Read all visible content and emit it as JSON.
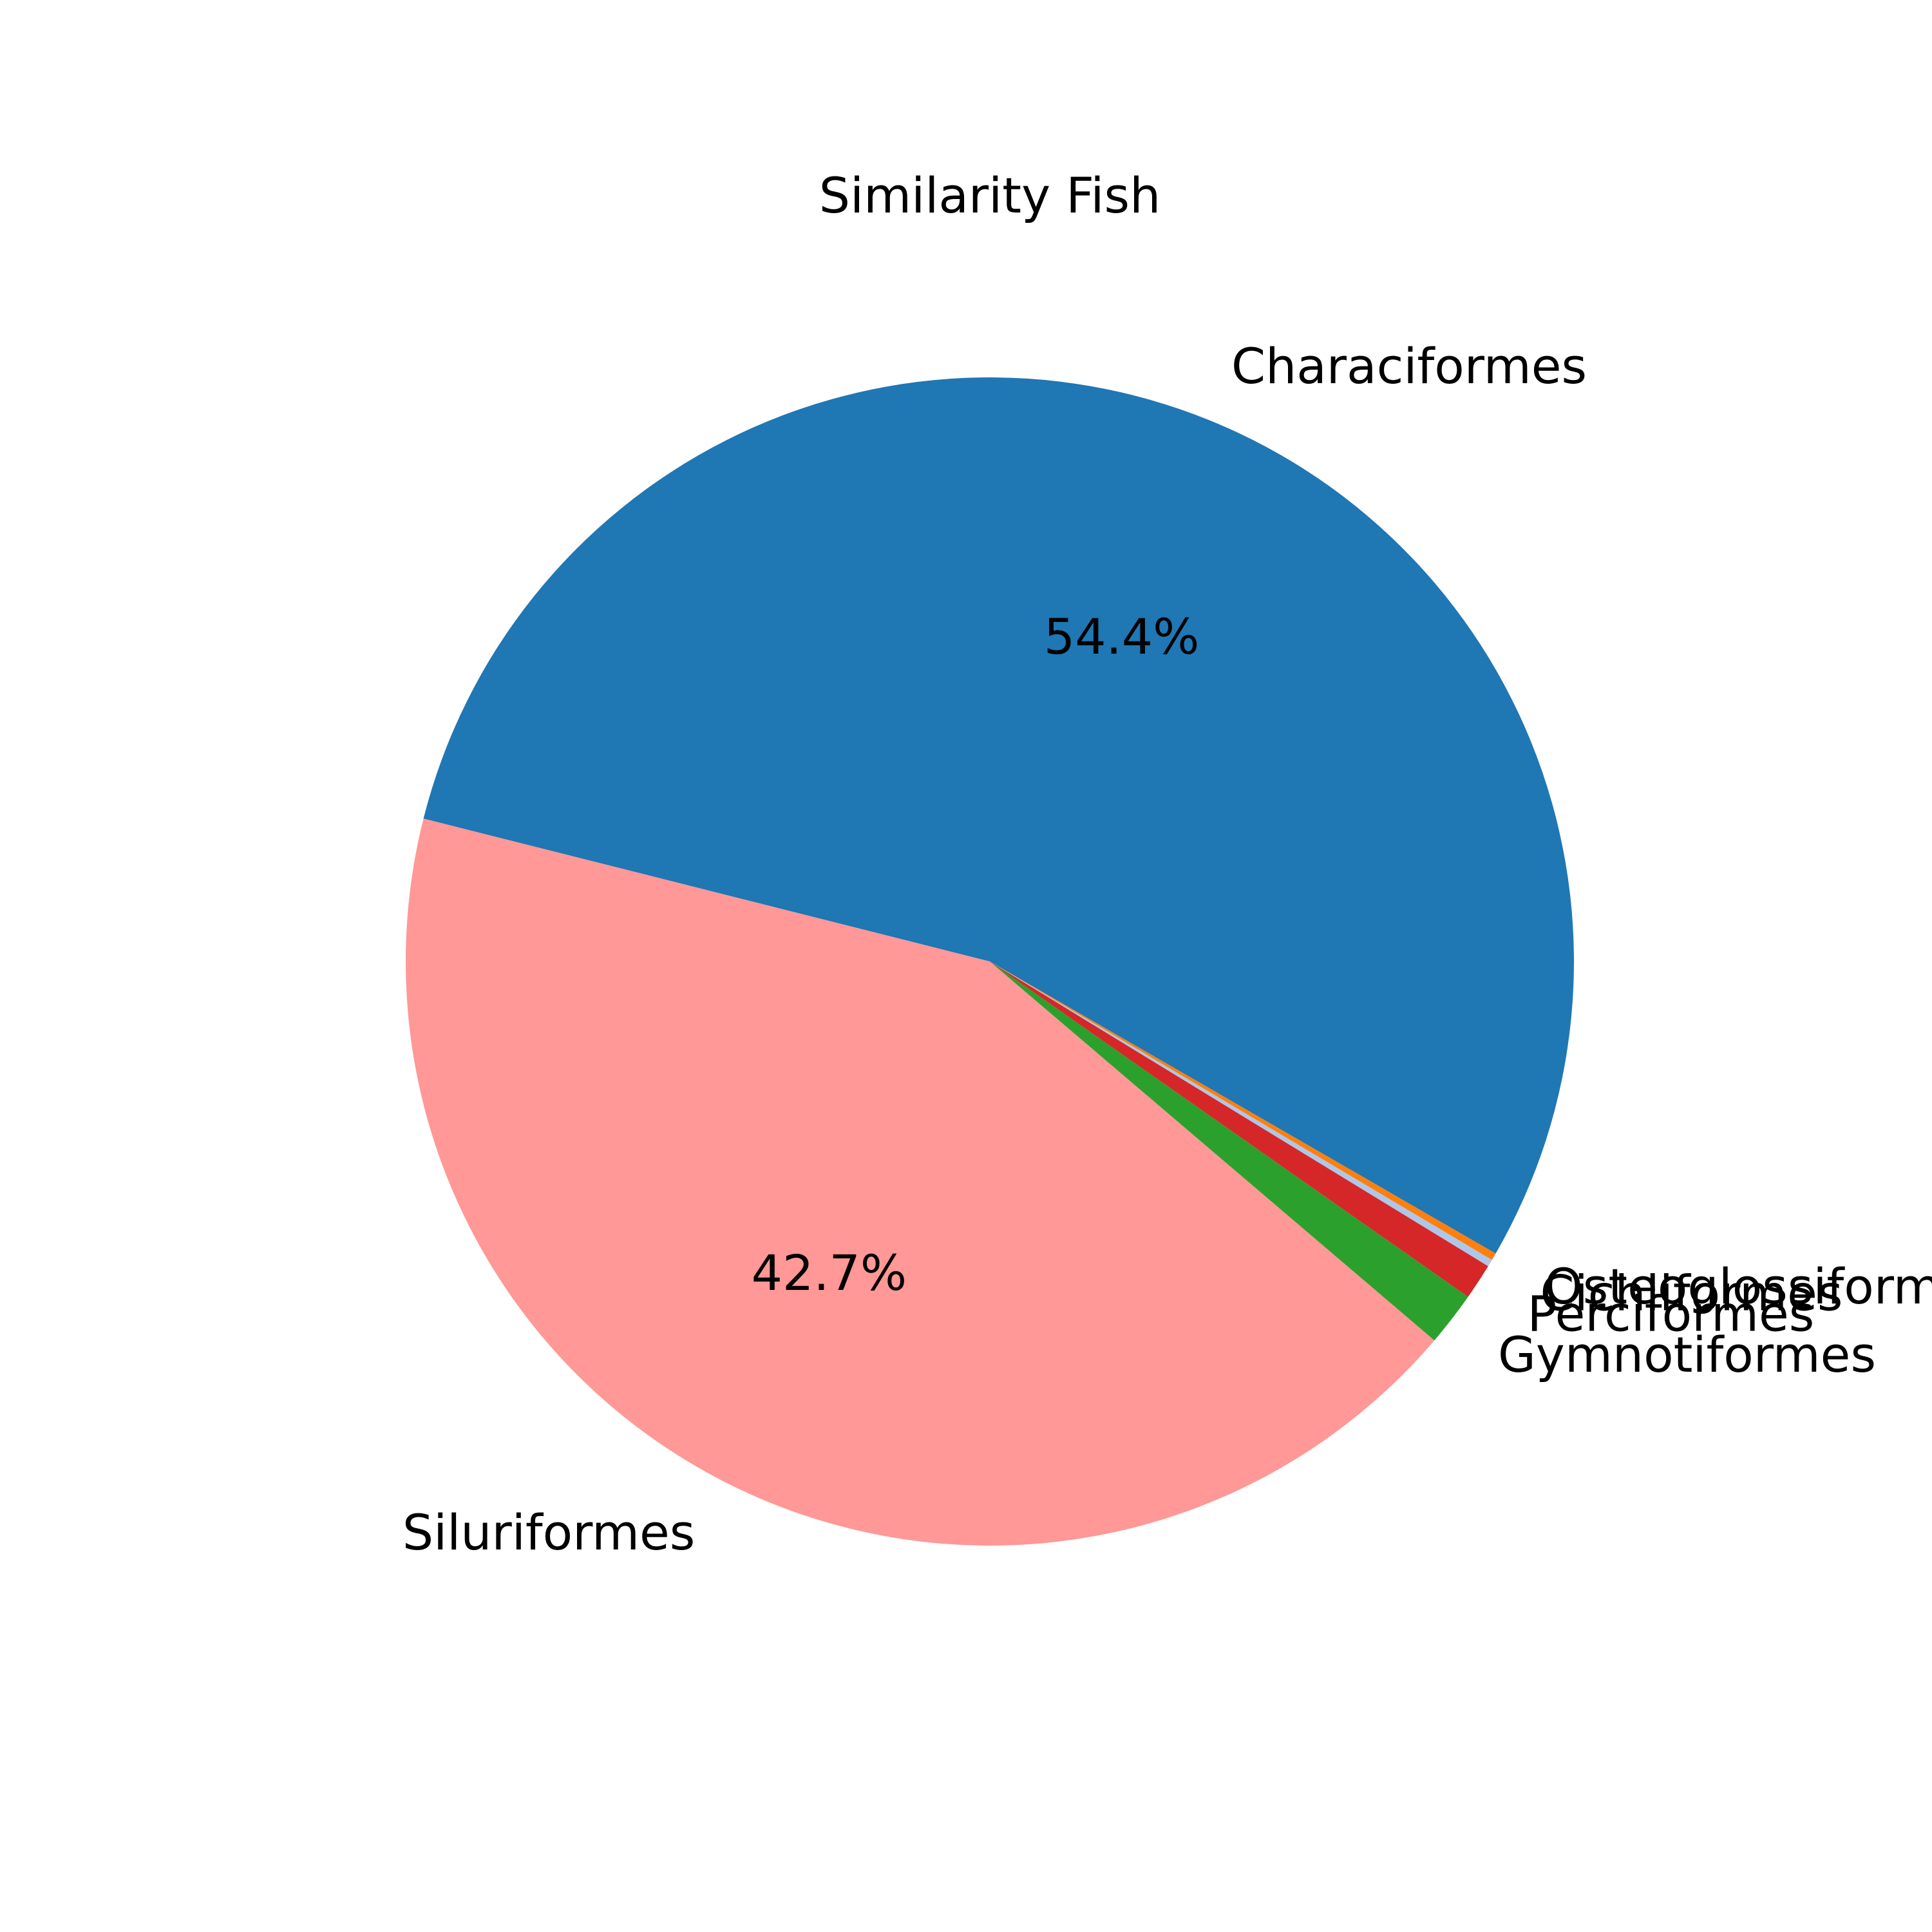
{
  "chart_data": {
    "type": "pie",
    "title": "Similarity Fish",
    "start_angle_deg": -30,
    "direction": "counterclockwise",
    "slices": [
      {
        "label": "Characiformes",
        "value": 54.4,
        "pct_label": "54.4%",
        "color": "#1f77b4"
      },
      {
        "label": "Siluriformes",
        "value": 42.7,
        "pct_label": "42.7%",
        "color": "#ff9896"
      },
      {
        "label": "Gymnotiformes",
        "value": 1.5,
        "pct_label": "",
        "color": "#2ca02c"
      },
      {
        "label": "Perciformes",
        "value": 1.0,
        "pct_label": "",
        "color": "#d62728"
      },
      {
        "label": "Cichliformes",
        "value": 0.2,
        "pct_label": "",
        "color": "#aec7e8"
      },
      {
        "label": "Osteoglossiformes",
        "value": 0.2,
        "pct_label": "",
        "color": "#ff7f0e"
      }
    ]
  }
}
